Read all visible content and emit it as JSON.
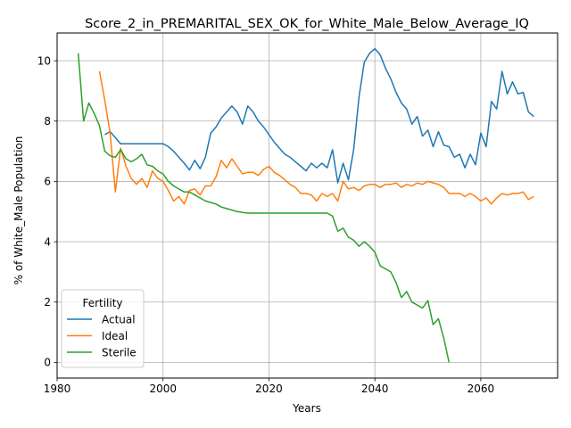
{
  "chart_data": {
    "type": "line",
    "title": "Score_2_in_PREMARITAL_SEX_OK_for_White_Male_Below_Average_IQ",
    "xlabel": "Years",
    "ylabel": "% of White_Male Population",
    "xlim": [
      1980,
      2074.5
    ],
    "ylim": [
      -0.52,
      10.92
    ],
    "xticks": [
      1980,
      2000,
      2020,
      2040,
      2060
    ],
    "yticks": [
      0,
      2,
      4,
      6,
      8,
      10
    ],
    "grid": true,
    "legend": {
      "title": "Fertility",
      "placement": "lower-left"
    },
    "series": [
      {
        "name": "Actual",
        "color": "#1f77b4",
        "x": [
          1989,
          1990,
          1991,
          1992,
          1993,
          1994,
          1995,
          1996,
          1997,
          1998,
          1999,
          2000,
          2001,
          2002,
          2003,
          2004,
          2005,
          2006,
          2007,
          2008,
          2009,
          2010,
          2011,
          2012,
          2013,
          2014,
          2015,
          2016,
          2017,
          2018,
          2019,
          2020,
          2021,
          2022,
          2023,
          2024,
          2025,
          2026,
          2027,
          2028,
          2029,
          2030,
          2031,
          2032,
          2033,
          2034,
          2035,
          2036,
          2037,
          2038,
          2039,
          2040,
          2041,
          2042,
          2043,
          2044,
          2045,
          2046,
          2047,
          2048,
          2049,
          2050,
          2051,
          2052,
          2053,
          2054,
          2055,
          2056,
          2057,
          2058,
          2059,
          2060,
          2061,
          2062,
          2063,
          2064,
          2065,
          2066,
          2067,
          2068,
          2069,
          2070
        ],
        "y": [
          7.55,
          7.65,
          7.45,
          7.25,
          7.25,
          7.25,
          7.25,
          7.25,
          7.25,
          7.25,
          7.25,
          7.25,
          7.15,
          7.0,
          6.8,
          6.6,
          6.38,
          6.7,
          6.42,
          6.8,
          7.6,
          7.8,
          8.1,
          8.3,
          8.5,
          8.3,
          7.9,
          8.5,
          8.3,
          8.0,
          7.8,
          7.55,
          7.3,
          7.1,
          6.9,
          6.8,
          6.65,
          6.5,
          6.35,
          6.6,
          6.45,
          6.6,
          6.45,
          7.05,
          5.95,
          6.6,
          6.05,
          7.05,
          8.8,
          9.95,
          10.25,
          10.4,
          10.2,
          9.75,
          9.4,
          8.95,
          8.6,
          8.4,
          7.9,
          8.15,
          7.5,
          7.7,
          7.15,
          7.65,
          7.2,
          7.15,
          6.8,
          6.9,
          6.45,
          6.9,
          6.55,
          7.6,
          7.15,
          8.65,
          8.4,
          9.65,
          8.9,
          9.3,
          8.9,
          8.95,
          8.3,
          8.15
        ]
      },
      {
        "name": "Ideal",
        "color": "#ff7f0e",
        "x": [
          1988,
          1989,
          1990,
          1991,
          1992,
          1993,
          1994,
          1995,
          1996,
          1997,
          1998,
          1999,
          2000,
          2001,
          2002,
          2003,
          2004,
          2005,
          2006,
          2007,
          2008,
          2009,
          2010,
          2011,
          2012,
          2013,
          2014,
          2015,
          2016,
          2017,
          2018,
          2019,
          2020,
          2021,
          2022,
          2023,
          2024,
          2025,
          2026,
          2027,
          2028,
          2029,
          2030,
          2031,
          2032,
          2033,
          2034,
          2035,
          2036,
          2037,
          2038,
          2039,
          2040,
          2041,
          2042,
          2043,
          2044,
          2045,
          2046,
          2047,
          2048,
          2049,
          2050,
          2051,
          2052,
          2053,
          2054,
          2055,
          2056,
          2057,
          2058,
          2059,
          2060,
          2061,
          2062,
          2063,
          2064,
          2065,
          2066,
          2067,
          2068,
          2069,
          2070
        ],
        "y": [
          9.65,
          8.7,
          7.6,
          5.65,
          7.1,
          6.5,
          6.1,
          5.9,
          6.1,
          5.8,
          6.35,
          6.1,
          6.0,
          5.7,
          5.35,
          5.5,
          5.25,
          5.7,
          5.75,
          5.55,
          5.85,
          5.85,
          6.15,
          6.7,
          6.45,
          6.75,
          6.5,
          6.25,
          6.3,
          6.3,
          6.2,
          6.4,
          6.5,
          6.3,
          6.2,
          6.05,
          5.9,
          5.8,
          5.6,
          5.6,
          5.55,
          5.35,
          5.6,
          5.5,
          5.6,
          5.35,
          6.0,
          5.75,
          5.8,
          5.7,
          5.85,
          5.9,
          5.9,
          5.8,
          5.9,
          5.9,
          5.95,
          5.8,
          5.9,
          5.85,
          5.95,
          5.9,
          6.0,
          5.95,
          5.9,
          5.8,
          5.6,
          5.6,
          5.6,
          5.5,
          5.6,
          5.5,
          5.35,
          5.45,
          5.25,
          5.45,
          5.6,
          5.55,
          5.6,
          5.6,
          5.65,
          5.4,
          5.5
        ]
      },
      {
        "name": "Sterile",
        "color": "#2ca02c",
        "x": [
          1984,
          1985,
          1986,
          1987,
          1988,
          1989,
          1990,
          1991,
          1992,
          1993,
          1994,
          1995,
          1996,
          1997,
          1998,
          1999,
          2000,
          2001,
          2002,
          2003,
          2004,
          2005,
          2006,
          2007,
          2008,
          2009,
          2010,
          2011,
          2012,
          2013,
          2014,
          2015,
          2016,
          2017,
          2018,
          2019,
          2020,
          2021,
          2022,
          2023,
          2024,
          2025,
          2026,
          2027,
          2028,
          2029,
          2030,
          2031,
          2032,
          2033,
          2034,
          2035,
          2036,
          2037,
          2038,
          2039,
          2040,
          2041,
          2042,
          2043,
          2044,
          2045,
          2046,
          2047,
          2048,
          2049,
          2050,
          2051,
          2052,
          2053,
          2054
        ],
        "y": [
          10.25,
          8.0,
          8.6,
          8.25,
          7.85,
          7.0,
          6.85,
          6.8,
          7.05,
          6.75,
          6.65,
          6.75,
          6.9,
          6.55,
          6.5,
          6.35,
          6.25,
          6.0,
          5.85,
          5.75,
          5.65,
          5.65,
          5.55,
          5.45,
          5.35,
          5.3,
          5.25,
          5.15,
          5.1,
          5.05,
          5.0,
          4.97,
          4.95,
          4.95,
          4.95,
          4.95,
          4.95,
          4.95,
          4.95,
          4.95,
          4.95,
          4.95,
          4.95,
          4.95,
          4.95,
          4.95,
          4.95,
          4.95,
          4.85,
          4.35,
          4.45,
          4.15,
          4.05,
          3.85,
          4.0,
          3.85,
          3.65,
          3.2,
          3.1,
          3.0,
          2.65,
          2.15,
          2.35,
          2.0,
          1.9,
          1.8,
          2.05,
          1.25,
          1.45,
          0.8,
          0.0
        ]
      }
    ]
  }
}
